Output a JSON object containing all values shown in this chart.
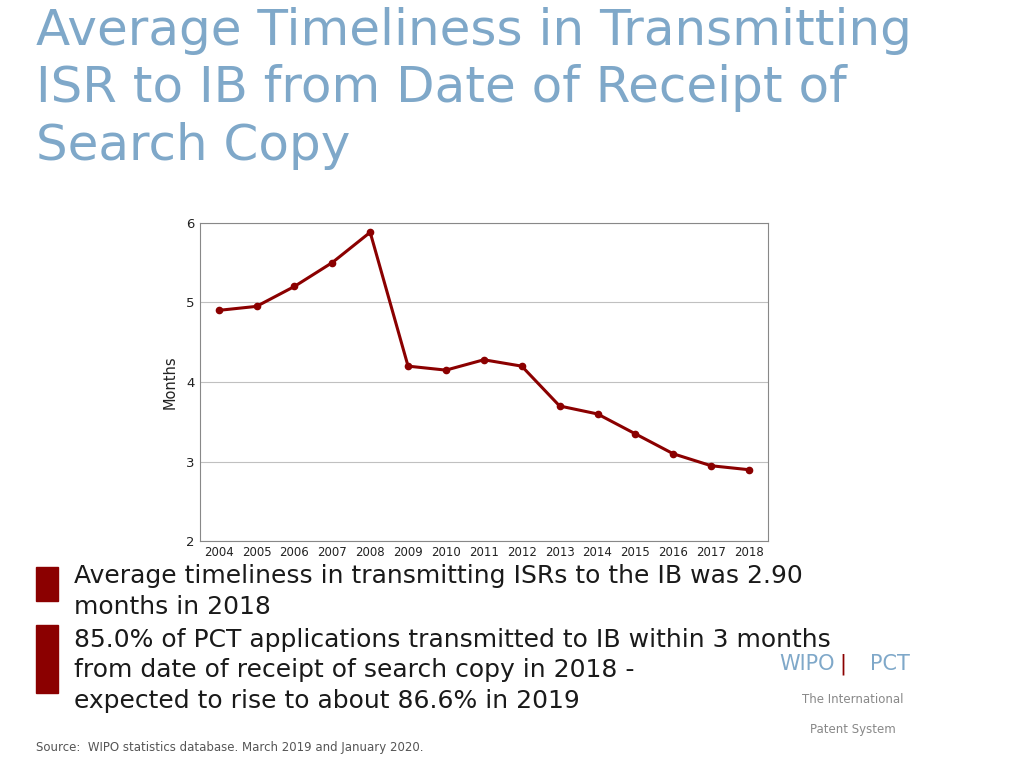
{
  "title_line1": "Average Timeliness in Transmitting",
  "title_line2": "ISR to IB from Date of Receipt of",
  "title_line3": "Search Copy",
  "title_color": "#7fa8c9",
  "title_fontsize": 36,
  "years": [
    2004,
    2005,
    2006,
    2007,
    2008,
    2009,
    2010,
    2011,
    2012,
    2013,
    2014,
    2015,
    2016,
    2017,
    2018
  ],
  "values": [
    4.9,
    4.95,
    5.2,
    5.5,
    5.88,
    4.2,
    4.15,
    4.28,
    4.2,
    3.7,
    3.6,
    3.35,
    3.1,
    2.95,
    2.9
  ],
  "line_color": "#8b0000",
  "marker_color": "#8b0000",
  "ylabel": "Months",
  "ylim": [
    2,
    6
  ],
  "yticks": [
    2,
    3,
    4,
    5,
    6
  ],
  "grid_color": "#c0c0c0",
  "background_color": "#ffffff",
  "bullet1_line1": "Average timeliness in transmitting ISRs to the IB was 2.90",
  "bullet1_line2": "months in 2018",
  "bullet2_line1": "85.0% of PCT applications transmitted to IB within 3 months",
  "bullet2_line2": "from date of receipt of search copy in 2018 -",
  "bullet2_line3": "expected to rise to about 86.6% in 2019",
  "bullet_color": "#8b0000",
  "bullet_text_color": "#1a1a1a",
  "bullet_fontsize": 18,
  "source_text": "Source:  WIPO statistics database. March 2019 and January 2020.",
  "wipo_text_main": "WIPO",
  "wipo_text_pct": "PCT",
  "wipo_pipe": "|",
  "wipo_text_2": "The International",
  "wipo_text_3": "Patent System",
  "wipo_color": "#7fa8c9",
  "wipo_pipe_color": "#8b0000"
}
